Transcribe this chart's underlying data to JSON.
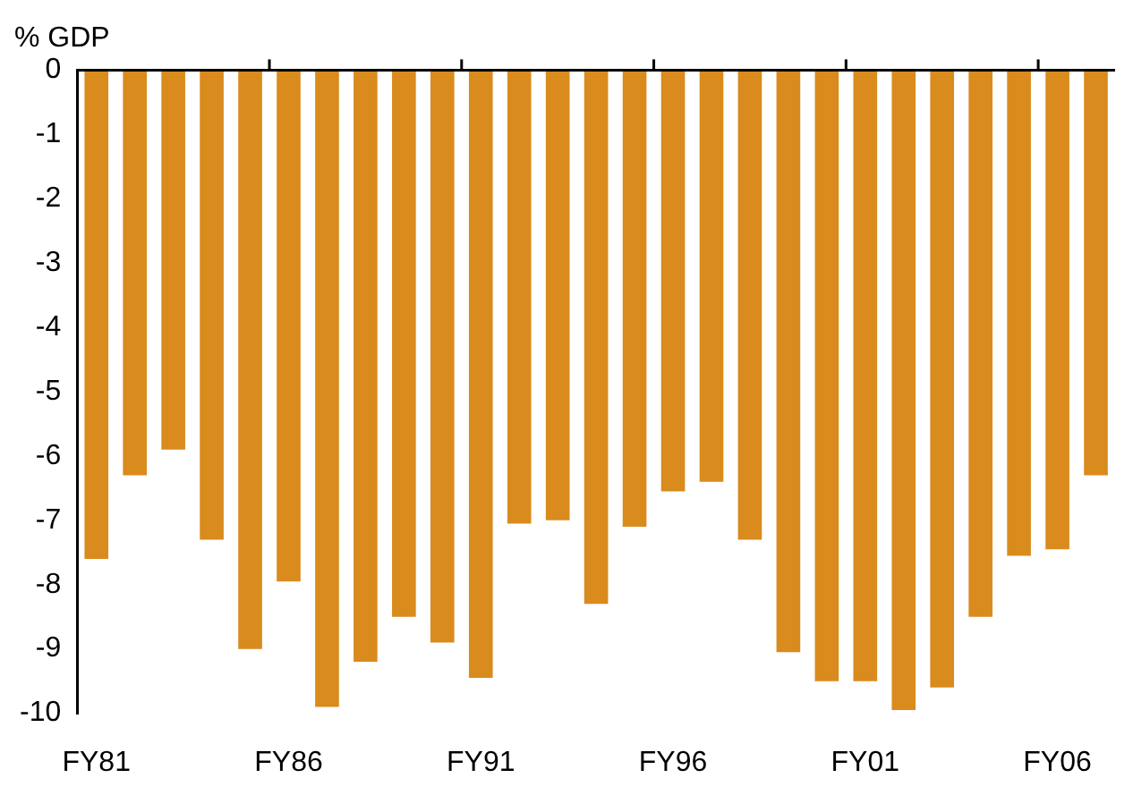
{
  "chart_data": {
    "type": "bar",
    "ylabel": "% GDP",
    "categories": [
      "FY81",
      null,
      null,
      null,
      null,
      "FY86",
      null,
      null,
      null,
      null,
      "FY91",
      null,
      null,
      null,
      null,
      "FY96",
      null,
      null,
      null,
      null,
      "FY01",
      null,
      null,
      null,
      null,
      "FY06",
      null
    ],
    "values": [
      -7.6,
      -6.3,
      -5.9,
      -7.3,
      -9.0,
      -7.95,
      -9.9,
      -9.2,
      -8.5,
      -8.9,
      -9.45,
      -7.05,
      -7.0,
      -8.3,
      -7.1,
      -6.55,
      -6.4,
      -7.3,
      -9.05,
      -9.5,
      -9.5,
      -9.95,
      -9.6,
      -8.5,
      -7.55,
      -7.45,
      -6.3
    ],
    "color": "#d98b1e",
    "ylim": [
      -10,
      0
    ],
    "yticks": [
      0,
      -1,
      -2,
      -3,
      -4,
      -5,
      -6,
      -7,
      -8,
      -9,
      -10
    ],
    "grid": false,
    "legend": false
  }
}
